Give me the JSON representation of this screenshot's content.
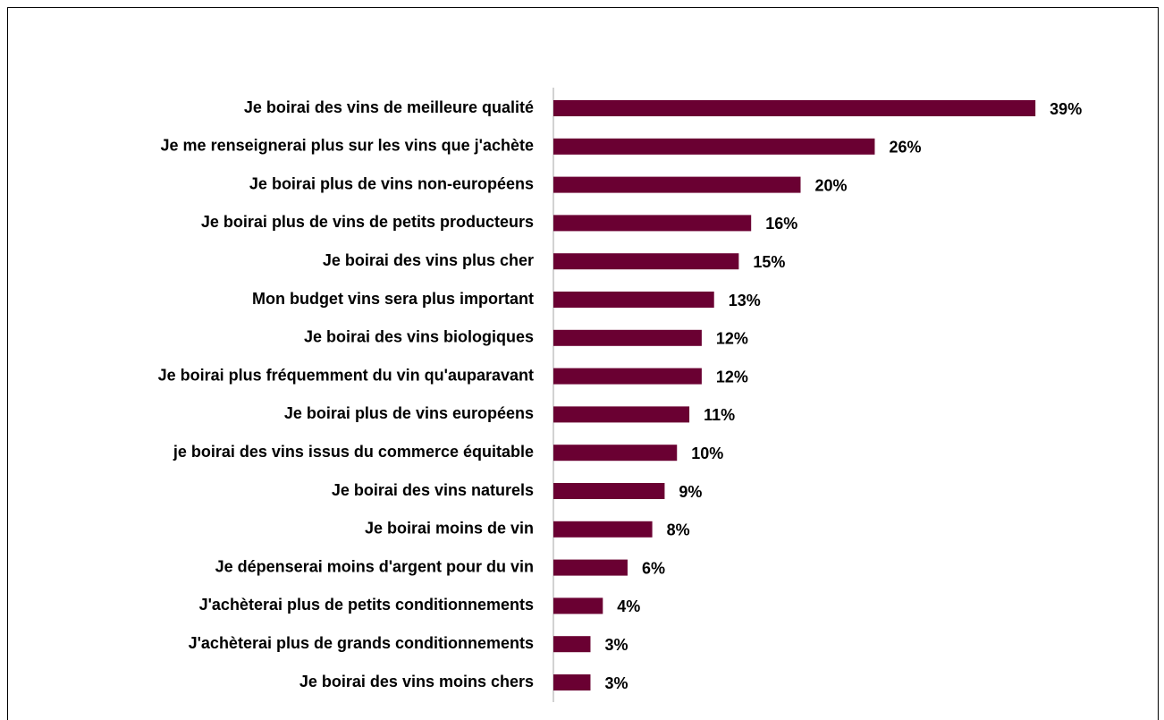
{
  "chart_data": {
    "type": "barh",
    "categories": [
      "Je boirai des vins de meilleure qualité",
      "Je me renseignerai plus sur les vins que j'achète",
      "Je boirai plus de vins non-européens",
      "Je boirai plus de vins de petits producteurs",
      "Je boirai des vins plus cher",
      "Mon budget vins sera plus important",
      "Je boirai des vins biologiques",
      "Je boirai plus fréquemment du vin qu'auparavant",
      "Je boirai plus de vins européens",
      "je boirai des vins issus du commerce équitable",
      "Je boirai des vins naturels",
      "Je boirai moins de vin",
      "Je dépenserai moins d'argent pour du vin",
      "J'achèterai plus de petits conditionnements",
      "J'achèterai plus de grands conditionnements",
      "Je boirai des vins moins chers"
    ],
    "values": [
      39,
      26,
      20,
      16,
      15,
      13,
      12,
      12,
      11,
      10,
      9,
      8,
      6,
      4,
      3,
      3
    ],
    "value_labels": [
      "39%",
      "26%",
      "20%",
      "16%",
      "15%",
      "13%",
      "12%",
      "12%",
      "11%",
      "10%",
      "9%",
      "8%",
      "6%",
      "4%",
      "3%",
      "3%"
    ],
    "color": "#6a0032",
    "xlim": [
      0,
      40
    ]
  }
}
